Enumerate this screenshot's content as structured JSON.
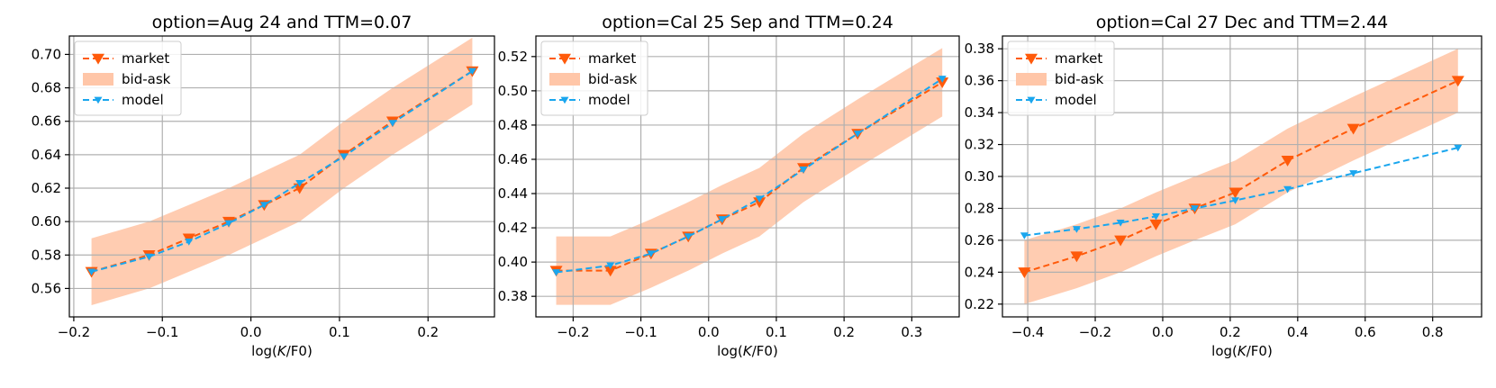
{
  "legend": {
    "market_label": "market",
    "bidask_label": "bid-ask",
    "model_label": "model"
  },
  "colors": {
    "market": "#ff5a0a",
    "bidask_fill": "#ffc6a8",
    "model": "#1aa6ee",
    "grid": "#b0b0b0"
  },
  "chart_data": [
    {
      "type": "line",
      "title": "option=Aug 24 and TTM=0.07",
      "xlabel": "log(K/F0)",
      "ylabel": "",
      "xlim": [
        -0.205,
        0.275
      ],
      "ylim": [
        0.543,
        0.711
      ],
      "xticks": [
        -0.2,
        -0.1,
        0.0,
        0.1,
        0.2
      ],
      "xtick_labels": [
        "−0.2",
        "−0.1",
        "0.0",
        "0.1",
        "0.2"
      ],
      "yticks": [
        0.56,
        0.58,
        0.6,
        0.62,
        0.64,
        0.66,
        0.68,
        0.7
      ],
      "ytick_labels": [
        "0.56",
        "0.58",
        "0.60",
        "0.62",
        "0.64",
        "0.66",
        "0.68",
        "0.70"
      ],
      "legend_position": "top-left",
      "x": [
        -0.18,
        -0.115,
        -0.07,
        -0.025,
        0.015,
        0.055,
        0.105,
        0.16,
        0.25
      ],
      "series": [
        {
          "name": "market",
          "values": [
            0.57,
            0.58,
            0.59,
            0.6,
            0.61,
            0.62,
            0.64,
            0.66,
            0.69
          ]
        },
        {
          "name": "model",
          "values": [
            0.57,
            0.579,
            0.588,
            0.599,
            0.61,
            0.623,
            0.639,
            0.659,
            0.69
          ]
        }
      ],
      "band": {
        "name": "bid-ask",
        "lower": [
          0.55,
          0.56,
          0.57,
          0.58,
          0.59,
          0.6,
          0.62,
          0.64,
          0.67
        ],
        "upper": [
          0.59,
          0.6,
          0.61,
          0.62,
          0.63,
          0.64,
          0.66,
          0.68,
          0.71
        ]
      }
    },
    {
      "type": "line",
      "title": "option=Cal 25 Sep and TTM=0.24",
      "xlabel": "log(K/F0)",
      "ylabel": "",
      "xlim": [
        -0.255,
        0.37
      ],
      "ylim": [
        0.368,
        0.532
      ],
      "xticks": [
        -0.2,
        -0.1,
        0.0,
        0.1,
        0.2,
        0.3
      ],
      "xtick_labels": [
        "−0.2",
        "−0.1",
        "0.0",
        "0.1",
        "0.2",
        "0.3"
      ],
      "yticks": [
        0.38,
        0.4,
        0.42,
        0.44,
        0.46,
        0.48,
        0.5,
        0.52
      ],
      "ytick_labels": [
        "0.38",
        "0.40",
        "0.42",
        "0.44",
        "0.46",
        "0.48",
        "0.50",
        "0.52"
      ],
      "legend_position": "top-left",
      "x": [
        -0.225,
        -0.145,
        -0.085,
        -0.03,
        0.02,
        0.075,
        0.14,
        0.22,
        0.345
      ],
      "series": [
        {
          "name": "market",
          "values": [
            0.395,
            0.395,
            0.405,
            0.415,
            0.425,
            0.435,
            0.455,
            0.475,
            0.505
          ]
        },
        {
          "name": "model",
          "values": [
            0.394,
            0.398,
            0.405,
            0.415,
            0.425,
            0.437,
            0.454,
            0.475,
            0.507
          ]
        }
      ],
      "band": {
        "name": "bid-ask",
        "lower": [
          0.375,
          0.375,
          0.385,
          0.395,
          0.405,
          0.415,
          0.435,
          0.455,
          0.485
        ],
        "upper": [
          0.415,
          0.415,
          0.425,
          0.435,
          0.445,
          0.455,
          0.475,
          0.495,
          0.525
        ]
      }
    },
    {
      "type": "line",
      "title": "option=Cal 27 Dec and TTM=2.44",
      "xlabel": "log(K/F0)",
      "ylabel": "",
      "xlim": [
        -0.475,
        0.945
      ],
      "ylim": [
        0.212,
        0.388
      ],
      "xticks": [
        -0.4,
        -0.2,
        0.0,
        0.2,
        0.4,
        0.6,
        0.8
      ],
      "xtick_labels": [
        "−0.4",
        "−0.2",
        "0.0",
        "0.2",
        "0.4",
        "0.6",
        "0.8"
      ],
      "yticks": [
        0.22,
        0.24,
        0.26,
        0.28,
        0.3,
        0.32,
        0.34,
        0.36,
        0.38
      ],
      "ytick_labels": [
        "0.22",
        "0.24",
        "0.26",
        "0.28",
        "0.30",
        "0.32",
        "0.34",
        "0.36",
        "0.38"
      ],
      "legend_position": "top-left",
      "x": [
        -0.41,
        -0.255,
        -0.125,
        -0.02,
        0.095,
        0.215,
        0.37,
        0.565,
        0.875
      ],
      "series": [
        {
          "name": "market",
          "values": [
            0.24,
            0.25,
            0.26,
            0.27,
            0.28,
            0.29,
            0.31,
            0.33,
            0.36
          ]
        },
        {
          "name": "model",
          "values": [
            0.263,
            0.267,
            0.271,
            0.275,
            0.28,
            0.285,
            0.292,
            0.302,
            0.318
          ]
        }
      ],
      "band": {
        "name": "bid-ask",
        "lower": [
          0.22,
          0.23,
          0.24,
          0.25,
          0.26,
          0.27,
          0.29,
          0.31,
          0.34
        ],
        "upper": [
          0.26,
          0.27,
          0.28,
          0.29,
          0.3,
          0.31,
          0.33,
          0.35,
          0.38
        ]
      }
    }
  ]
}
